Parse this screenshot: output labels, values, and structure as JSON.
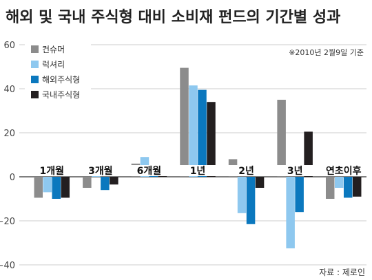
{
  "chart_data": {
    "type": "bar",
    "title": "해외 및 국내 주식형 대비 소비재 펀드의 기간별 성과",
    "note": "※2010년 2월9일 기준",
    "source": "자료 : 제로인",
    "ylim": [
      -40,
      60
    ],
    "yticks": [
      "60",
      "40",
      "20",
      "0",
      "−20",
      "−40"
    ],
    "ytick_values": [
      60,
      40,
      20,
      0,
      -20,
      -40
    ],
    "grid": "horizontal",
    "legend_position": "top-left",
    "categories": [
      "1개월",
      "3개월",
      "6개월",
      "1년",
      "2년",
      "3년",
      "연초이후"
    ],
    "series": [
      {
        "name": "컨슈머",
        "color": "#8c8c8c",
        "values": [
          -9.5,
          -5,
          6,
          49.5,
          8,
          35,
          -10
        ]
      },
      {
        "name": "럭셔리",
        "color": "#8ec8ef",
        "values": [
          -7,
          3,
          9,
          41.5,
          -16.5,
          -32.5,
          -5
        ]
      },
      {
        "name": "해외주식형",
        "color": "#0b78be",
        "values": [
          -10,
          -6,
          4,
          39.5,
          -21.5,
          -16,
          -9.5
        ]
      },
      {
        "name": "국내주식형",
        "color": "#231f20",
        "values": [
          -9.5,
          -3.5,
          1.5,
          34,
          -5,
          20.5,
          -9
        ]
      }
    ]
  }
}
